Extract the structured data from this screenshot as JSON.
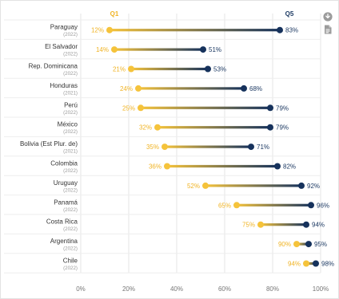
{
  "toolbar": {
    "download_icon": "download-circle-icon",
    "document_icon": "document-icon"
  },
  "colors": {
    "q1": "#f5c33b",
    "q5": "#16325c",
    "q1_label": "#f0b323",
    "q5_label": "#1d3a63",
    "text": "#333333",
    "subtext": "#9a9a9a",
    "grid": "#e4e4e4",
    "axis_text": "#777777"
  },
  "chart_data": {
    "type": "dumbbell",
    "legend": [
      "Q1",
      "Q5"
    ],
    "legend_position": "top",
    "xlim": [
      0,
      100
    ],
    "x_ticks": [
      "0%",
      "20%",
      "40%",
      "60%",
      "80%",
      "100%"
    ],
    "grid": "vertical",
    "categories": [
      {
        "name": "Paraguay",
        "year": "(2022)"
      },
      {
        "name": "El Salvador",
        "year": "(2022)"
      },
      {
        "name": "Rep. Dominicana",
        "year": "(2022)"
      },
      {
        "name": "Honduras",
        "year": "(2021)"
      },
      {
        "name": "Perú",
        "year": "(2022)"
      },
      {
        "name": "México",
        "year": "(2022)"
      },
      {
        "name": "Bolivia (Est Plur. de)",
        "year": "(2021)"
      },
      {
        "name": "Colombia",
        "year": "(2022)"
      },
      {
        "name": "Uruguay",
        "year": "(2022)"
      },
      {
        "name": "Panamá",
        "year": "(2022)"
      },
      {
        "name": "Costa Rica",
        "year": "(2022)"
      },
      {
        "name": "Argentina",
        "year": "(2022)"
      },
      {
        "name": "Chile",
        "year": "(2022)"
      }
    ],
    "series": [
      {
        "name": "Q1",
        "values": [
          12,
          14,
          21,
          24,
          25,
          32,
          35,
          36,
          52,
          65,
          75,
          90,
          94
        ]
      },
      {
        "name": "Q5",
        "values": [
          83,
          51,
          53,
          68,
          79,
          79,
          71,
          82,
          92,
          96,
          94,
          95,
          98
        ]
      }
    ]
  }
}
